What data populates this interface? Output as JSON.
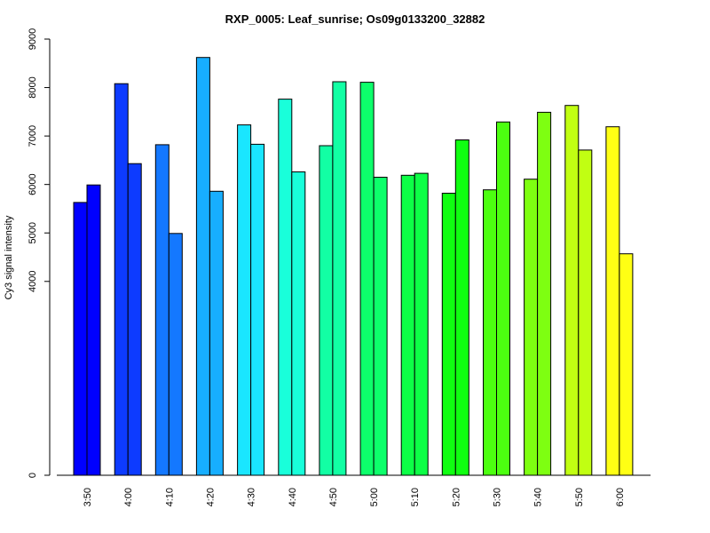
{
  "chart_data": {
    "type": "bar",
    "title": "RXP_0005: Leaf_sunrise; Os09g0133200_32882",
    "xlabel": "",
    "ylabel": "Cy3 signal intensity",
    "categories": [
      "3:50",
      "4:00",
      "4:10",
      "4:20",
      "4:30",
      "4:40",
      "4:50",
      "5:00",
      "5:10",
      "5:20",
      "5:30",
      "5:40",
      "5:50",
      "6:00"
    ],
    "series": [
      {
        "values": [
          5630,
          8080,
          6820,
          8620,
          7230,
          7760,
          6800,
          8110,
          6190,
          5820,
          5890,
          6110,
          7630,
          7190
        ]
      },
      {
        "values": [
          5990,
          6430,
          4990,
          5860,
          6830,
          6260,
          8120,
          6150,
          6230,
          6920,
          7290,
          7490,
          6710,
          4570
        ]
      }
    ],
    "group_colors": [
      "#0000FF",
      "#0D3BFF",
      "#1478FF",
      "#17AEFF",
      "#1AE6FF",
      "#19FFDA",
      "#12FFA4",
      "#0DFF6B",
      "#0DFF46",
      "#10FF11",
      "#4CFF10",
      "#7EFF11",
      "#C1FF12",
      "#FFFF14"
    ],
    "y_ticks": [
      0,
      4000,
      5000,
      6000,
      7000,
      8000,
      9000
    ],
    "ylim": [
      0,
      9000
    ],
    "grid": false,
    "legend": "none"
  }
}
